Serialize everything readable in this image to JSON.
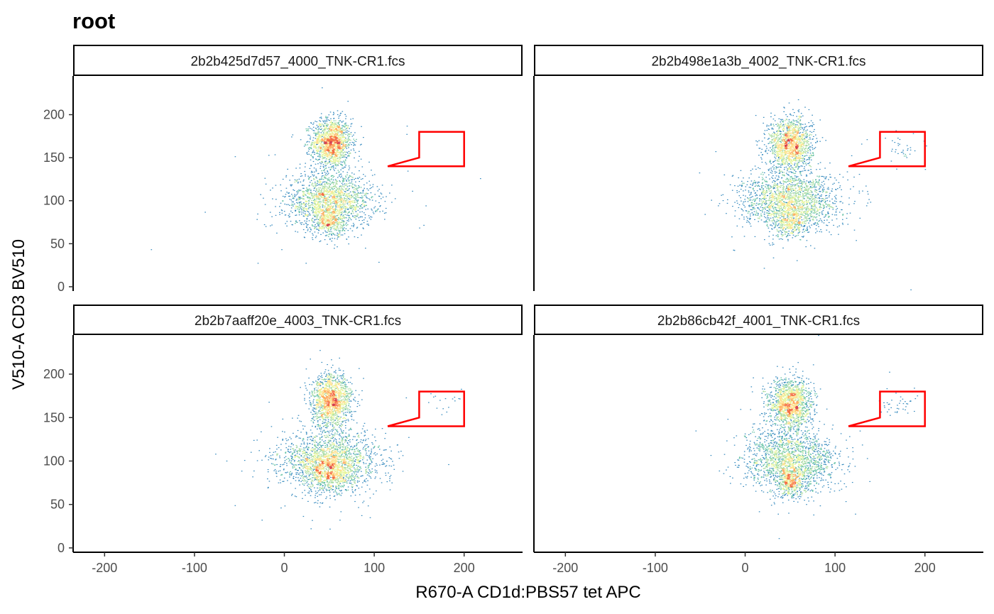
{
  "chart_data": {
    "type": "scatter",
    "title": "root",
    "xlabel": "R670-A CD1d:PBS57 tet APC",
    "ylabel": "V510-A CD3 BV510",
    "xlim": [
      -235,
      265
    ],
    "ylim": [
      -5,
      245
    ],
    "x_ticks": [
      -200,
      -100,
      0,
      100,
      200
    ],
    "y_ticks": [
      0,
      50,
      100,
      150,
      200
    ],
    "grid": false,
    "legend": "none",
    "colors": {
      "gate": "#ff0000",
      "density_low": "#5e4fa2",
      "density_mid_low": "#66c2a5",
      "density_mid": "#ffffbf",
      "density_mid_high": "#fdae61",
      "density_high": "#d53e4f"
    },
    "gate_polygon": [
      [
        115,
        140
      ],
      [
        150,
        150
      ],
      [
        150,
        180
      ],
      [
        200,
        180
      ],
      [
        200,
        140
      ]
    ],
    "panels": [
      {
        "strip": "2b2b425d7d57_4000_TNK-CR1.fcs",
        "populations": [
          {
            "name": "upper",
            "cx": 52,
            "cy": 168,
            "sx": 11,
            "sy": 14,
            "n": 1500
          },
          {
            "name": "lower",
            "cx": 50,
            "cy": 100,
            "sx": 24,
            "sy": 16,
            "n": 1800
          },
          {
            "name": "lower-tail",
            "cx": 50,
            "cy": 75,
            "sx": 8,
            "sy": 8,
            "n": 350
          }
        ]
      },
      {
        "strip": "2b2b498e1a3b_4002_TNK-CR1.fcs",
        "populations": [
          {
            "name": "upper",
            "cx": 50,
            "cy": 165,
            "sx": 12,
            "sy": 16,
            "n": 1500
          },
          {
            "name": "lower",
            "cx": 50,
            "cy": 100,
            "sx": 27,
            "sy": 16,
            "n": 1800
          },
          {
            "name": "lower-tail",
            "cx": 50,
            "cy": 75,
            "sx": 9,
            "sy": 9,
            "n": 350
          },
          {
            "name": "gate-cluster",
            "cx": 175,
            "cy": 160,
            "sx": 12,
            "sy": 10,
            "n": 35
          }
        ]
      },
      {
        "strip": "2b2b7aaff20e_4003_TNK-CR1.fcs",
        "populations": [
          {
            "name": "upper",
            "cx": 52,
            "cy": 170,
            "sx": 11,
            "sy": 15,
            "n": 1500
          },
          {
            "name": "lower",
            "cx": 50,
            "cy": 100,
            "sx": 27,
            "sy": 17,
            "n": 2000
          },
          {
            "name": "lower-tail",
            "cx": 50,
            "cy": 85,
            "sx": 12,
            "sy": 10,
            "n": 450
          },
          {
            "name": "gate-cluster",
            "cx": 178,
            "cy": 168,
            "sx": 12,
            "sy": 8,
            "n": 15
          }
        ]
      },
      {
        "strip": "2b2b86cb42f_4001_TNK-CR1.fcs",
        "populations": [
          {
            "name": "upper",
            "cx": 50,
            "cy": 165,
            "sx": 12,
            "sy": 15,
            "n": 1500
          },
          {
            "name": "lower",
            "cx": 50,
            "cy": 100,
            "sx": 25,
            "sy": 17,
            "n": 1800
          },
          {
            "name": "lower-tail",
            "cx": 50,
            "cy": 75,
            "sx": 8,
            "sy": 8,
            "n": 350
          },
          {
            "name": "gate-cluster",
            "cx": 175,
            "cy": 165,
            "sx": 12,
            "sy": 8,
            "n": 40
          }
        ]
      }
    ]
  }
}
